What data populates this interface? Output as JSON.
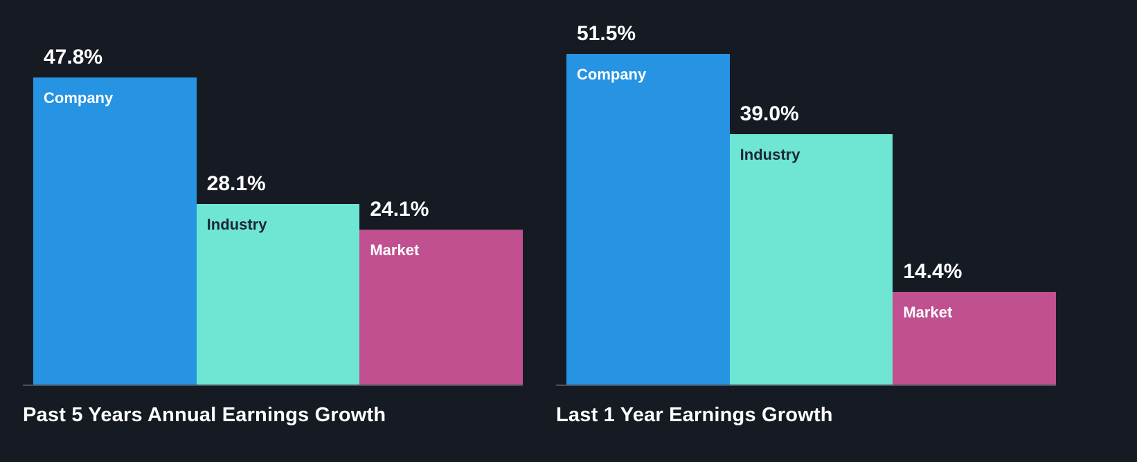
{
  "background": "#151a23",
  "baseline_color": "#49525e",
  "series_colors": {
    "Company": "#2693e3",
    "Industry": "#6fe6d3",
    "Market": "#c0508f"
  },
  "category_label_colors": {
    "Company": "#ffffff",
    "Industry": "#1d2634",
    "Market": "#ffffff"
  },
  "value_label_color": "#ffffff",
  "chart_data": [
    {
      "type": "bar",
      "title": "Past 5 Years Annual Earnings Growth",
      "categories": [
        "Company",
        "Industry",
        "Market"
      ],
      "values": [
        47.8,
        28.1,
        24.1
      ],
      "value_labels": [
        "47.8%",
        "28.1%",
        "24.1%"
      ],
      "ylabel": "",
      "xlabel": "",
      "ylim": [
        0,
        51.5
      ],
      "grid": false,
      "legend": "none",
      "bar_label_position": "inside-top-left",
      "value_label_position": "above-bar-left"
    },
    {
      "type": "bar",
      "title": "Last 1 Year Earnings Growth",
      "categories": [
        "Company",
        "Industry",
        "Market"
      ],
      "values": [
        51.5,
        39.0,
        14.4
      ],
      "value_labels": [
        "51.5%",
        "39.0%",
        "14.4%"
      ],
      "ylabel": "",
      "xlabel": "",
      "ylim": [
        0,
        51.5
      ],
      "grid": false,
      "legend": "none",
      "bar_label_position": "inside-top-left",
      "value_label_position": "above-bar-left"
    }
  ]
}
